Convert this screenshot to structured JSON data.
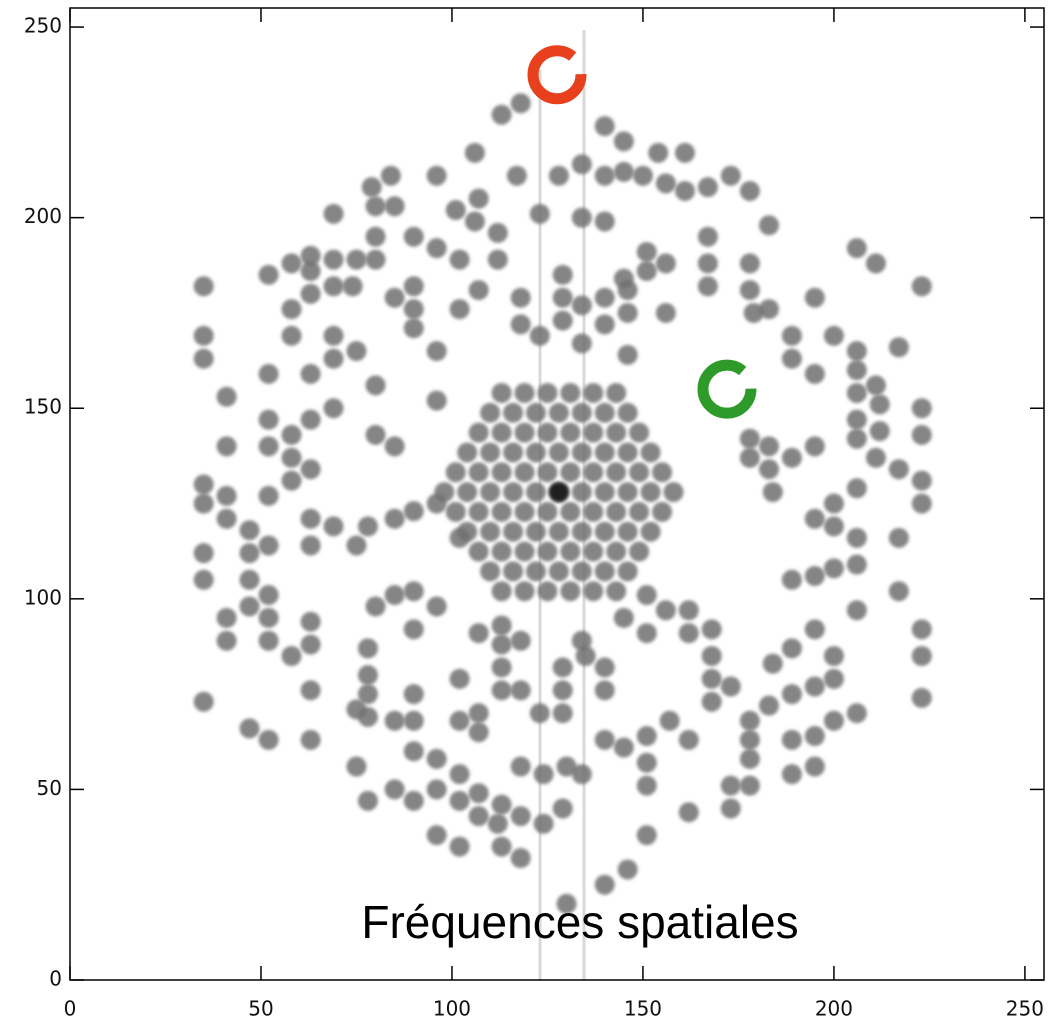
{
  "chart_data": {
    "type": "scatter",
    "annotation": "Fréquences spatiales",
    "xlim": [
      0,
      255
    ],
    "ylim": [
      0,
      255
    ],
    "xticks": [
      0,
      50,
      100,
      150,
      200,
      250
    ],
    "yticks": [
      0,
      50,
      100,
      150,
      200,
      250
    ],
    "series": [
      {
        "color": "#707070",
        "marker": "dot",
        "x": [
          113,
          119,
          125,
          131,
          137,
          143,
          110,
          116,
          122,
          128,
          134,
          140,
          146,
          107,
          113,
          119,
          125,
          131,
          137,
          143,
          149,
          104,
          110,
          116,
          122,
          128,
          134,
          140,
          146,
          152,
          101,
          107,
          113,
          119,
          125,
          131,
          137,
          143,
          149,
          155,
          98,
          104,
          110,
          116,
          122,
          128,
          134,
          140,
          146,
          152,
          158,
          101,
          107,
          113,
          119,
          125,
          131,
          137,
          143,
          149,
          155,
          104,
          110,
          116,
          122,
          128,
          134,
          140,
          146,
          152,
          107,
          113,
          119,
          125,
          131,
          137,
          143,
          149,
          110,
          116,
          122,
          128,
          134,
          140,
          146,
          113,
          119,
          125,
          131,
          137,
          143
        ],
        "values": [
          102,
          102,
          102,
          102,
          102,
          102,
          107.2,
          107.2,
          107.2,
          107.2,
          107.2,
          107.2,
          107.2,
          112.4,
          112.4,
          112.4,
          112.4,
          112.4,
          112.4,
          112.4,
          112.4,
          117.6,
          117.6,
          117.6,
          117.6,
          117.6,
          117.6,
          117.6,
          117.6,
          117.6,
          122.8,
          122.8,
          122.8,
          122.8,
          122.8,
          122.8,
          122.8,
          122.8,
          122.8,
          122.8,
          128,
          128,
          128,
          128,
          128,
          128,
          128,
          128,
          128,
          128,
          128,
          133.2,
          133.2,
          133.2,
          133.2,
          133.2,
          133.2,
          133.2,
          133.2,
          133.2,
          133.2,
          138.4,
          138.4,
          138.4,
          138.4,
          138.4,
          138.4,
          138.4,
          138.4,
          138.4,
          143.6,
          143.6,
          143.6,
          143.6,
          143.6,
          143.6,
          143.6,
          143.6,
          148.8,
          148.8,
          148.8,
          148.8,
          148.8,
          148.8,
          148.8,
          154,
          154,
          154,
          154,
          154,
          154
        ]
      },
      {
        "color": "#707070",
        "marker": "dot",
        "x": [
          113,
          118,
          140,
          145,
          154,
          161,
          106,
          117,
          128,
          134,
          140,
          145,
          150,
          156,
          161,
          167,
          173,
          178,
          183,
          35,
          35,
          35,
          52,
          58,
          63,
          69,
          79,
          84,
          96,
          101,
          107,
          112,
          123,
          134,
          140,
          206,
          211,
          223,
          195,
          183,
          167,
          167,
          167,
          178,
          178,
          179,
          156,
          146,
          151,
          156,
          189,
          200,
          206,
          217,
          189,
          195,
          206,
          211,
          206,
          212,
          223,
          223,
          206,
          212,
          206,
          195,
          211,
          217,
          189,
          183,
          178,
          178,
          183,
          223,
          223,
          206,
          200,
          195,
          200,
          206,
          217,
          206,
          200,
          195,
          189,
          184,
          217,
          206,
          195,
          223,
          223,
          200,
          189,
          184,
          200,
          195,
          189,
          183,
          206,
          200,
          195,
          189,
          178,
          178,
          178,
          195,
          189,
          178,
          173,
          173,
          223,
          168,
          168,
          168,
          173,
          168,
          162,
          162,
          156,
          151,
          145,
          151,
          140,
          140,
          135,
          157,
          162,
          151,
          145,
          140,
          151,
          151,
          162,
          151,
          146,
          140,
          134,
          130,
          124,
          118,
          129,
          124,
          118,
          113,
          107,
          102,
          102,
          102,
          96,
          107,
          112,
          118,
          113,
          130,
          90,
          85,
          78,
          96,
          96,
          90,
          85,
          78,
          75,
          78,
          78,
          78,
          75,
          90,
          102,
          107,
          107,
          102,
          90,
          113,
          113,
          118,
          123,
          129,
          129,
          129,
          134,
          113,
          107,
          113,
          118,
          63,
          52,
          47,
          35,
          63,
          58,
          52,
          63,
          63,
          52,
          41,
          41,
          47,
          52,
          47,
          35,
          35,
          47,
          47,
          52,
          63,
          63,
          69,
          75,
          78,
          85,
          90,
          96,
          80,
          85,
          90,
          90,
          96,
          102,
          35,
          35,
          41,
          41,
          52,
          58,
          63,
          58,
          52,
          58,
          63,
          69,
          52,
          41,
          41,
          52,
          63,
          69,
          75,
          69,
          58,
          58,
          63,
          69,
          74,
          63,
          69,
          75,
          80,
          80,
          80,
          85,
          90,
          96,
          102,
          106,
          90,
          90,
          85,
          90,
          96,
          102,
          107,
          80,
          80,
          85,
          96,
          112,
          118,
          118,
          123,
          129,
          129,
          129,
          134,
          140,
          140,
          145,
          151,
          146,
          146,
          134
        ],
        "values": [
          227,
          230,
          224,
          220,
          217,
          217,
          217,
          211,
          211,
          214,
          211,
          212,
          211,
          209,
          207,
          208,
          211,
          207,
          198,
          182,
          169,
          163,
          185,
          188,
          190,
          201,
          208,
          211,
          211,
          202,
          205,
          196,
          201,
          200,
          199,
          192,
          188,
          182,
          179,
          176,
          195,
          188,
          182,
          188,
          181,
          175,
          175,
          181,
          191,
          188,
          169,
          169,
          165,
          166,
          163,
          159,
          160,
          156,
          154,
          151,
          150,
          143,
          147,
          144,
          142,
          140,
          137,
          134,
          137,
          140,
          142,
          137,
          134,
          131,
          125,
          129,
          125,
          121,
          119,
          116,
          116,
          109,
          108,
          106,
          105,
          128,
          102,
          97,
          92,
          92,
          85,
          85,
          87,
          83,
          79,
          77,
          75,
          72,
          70,
          68,
          64,
          63,
          68,
          63,
          58,
          56,
          54,
          51,
          51,
          45,
          74,
          92,
          85,
          79,
          77,
          73,
          97,
          91,
          97,
          91,
          95,
          101,
          76,
          82,
          85,
          68,
          63,
          64,
          61,
          63,
          57,
          51,
          44,
          38,
          29,
          25,
          54,
          56,
          54,
          56,
          45,
          41,
          43,
          46,
          49,
          54,
          47,
          35,
          38,
          43,
          41,
          32,
          35,
          20,
          47,
          50,
          47,
          50,
          58,
          60,
          68,
          69,
          71,
          75,
          80,
          87,
          56,
          68,
          68,
          65,
          70,
          79,
          75,
          76,
          82,
          76,
          70,
          70,
          76,
          82,
          89,
          88,
          91,
          93,
          89,
          63,
          63,
          66,
          73,
          76,
          85,
          89,
          88,
          94,
          95,
          89,
          95,
          98,
          101,
          105,
          105,
          112,
          112,
          118,
          114,
          114,
          121,
          119,
          114,
          119,
          121,
          123,
          125,
          98,
          101,
          102,
          92,
          98,
          116,
          125,
          130,
          127,
          121,
          127,
          131,
          134,
          137,
          140,
          143,
          147,
          150,
          147,
          140,
          153,
          159,
          159,
          163,
          165,
          169,
          169,
          176,
          180,
          182,
          182,
          186,
          189,
          189,
          189,
          195,
          203,
          203,
          195,
          192,
          189,
          199,
          182,
          176,
          179,
          171,
          165,
          176,
          181,
          156,
          143,
          140,
          152,
          189,
          179,
          172,
          169,
          185,
          179,
          173,
          177,
          179,
          172,
          184,
          186,
          175,
          164,
          167
        ]
      },
      {
        "color": "#111111",
        "marker": "dot",
        "x": [
          128
        ],
        "values": [
          128
        ]
      },
      {
        "color": "#e8401c",
        "marker": "ring",
        "x": [
          127.5
        ],
        "values": [
          237.5
        ]
      },
      {
        "color": "#2e9a2a",
        "marker": "ring",
        "x": [
          172
        ],
        "values": [
          155
        ]
      }
    ]
  }
}
